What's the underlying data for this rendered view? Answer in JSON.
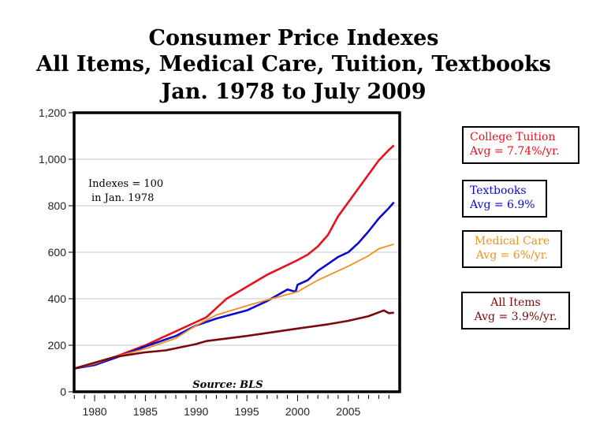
{
  "chart_data": {
    "type": "line",
    "title": [
      "Consumer Price Indexes",
      "All Items, Medical Care, Tuition, Textbooks",
      "Jan. 1978 to July 2009"
    ],
    "xlim": [
      1978,
      2010
    ],
    "ylim": [
      0,
      1200
    ],
    "x_ticks": [
      1980,
      1985,
      1990,
      1995,
      2000,
      2005
    ],
    "y_ticks": [
      0,
      200,
      400,
      600,
      800,
      1000,
      1200
    ],
    "y_tick_labels": [
      "0",
      "200",
      "400",
      "600",
      "800",
      "1,000",
      "1,200"
    ],
    "grid": "horizontal",
    "annotations": {
      "index_note_1": "Indexes = 100",
      "index_note_2": "in Jan. 1978",
      "source": "Source: BLS"
    },
    "series": [
      {
        "name": "College Tuition",
        "avg": "Avg = 7.74%/yr.",
        "color": "#e8101a",
        "x": [
          1978,
          1980,
          1982,
          1985,
          1988,
          1990,
          1991,
          1992,
          1993,
          1995,
          1997,
          1999,
          2000,
          2001,
          2002,
          2003,
          2004,
          2005,
          2006,
          2007,
          2008,
          2009,
          2009.5
        ],
        "y": [
          100,
          118,
          150,
          200,
          260,
          300,
          320,
          360,
          400,
          452,
          503,
          545,
          566,
          590,
          625,
          675,
          755,
          815,
          875,
          935,
          995,
          1040,
          1060
        ]
      },
      {
        "name": "Textbooks",
        "avg": "Avg = 6.9%",
        "color": "#0a0ad2",
        "x": [
          1978,
          1980,
          1982,
          1985,
          1988,
          1990,
          1992,
          1995,
          1997,
          1999,
          1999.8,
          2000,
          2001,
          2002,
          2003,
          2004,
          2005,
          2006,
          2007,
          2008,
          2009,
          2009.5
        ],
        "y": [
          100,
          115,
          145,
          195,
          240,
          285,
          315,
          350,
          390,
          440,
          430,
          460,
          480,
          520,
          550,
          580,
          600,
          640,
          690,
          745,
          790,
          815
        ]
      },
      {
        "name": "Medical Care",
        "avg": "Avg = 6%/yr.",
        "color": "#f0901e",
        "x": [
          1978,
          1980,
          1982,
          1985,
          1988,
          1990,
          1992,
          1995,
          1997,
          2000,
          2002,
          2005,
          2007,
          2008,
          2009.5
        ],
        "y": [
          100,
          120,
          150,
          185,
          230,
          285,
          330,
          370,
          395,
          430,
          480,
          540,
          585,
          615,
          635
        ]
      },
      {
        "name": "All Items",
        "avg": "Avg = 3.9%/yr.",
        "color": "#7a0a0a",
        "x": [
          1978,
          1980,
          1982,
          1985,
          1987,
          1990,
          1991,
          1995,
          2000,
          2003,
          2005,
          2007,
          2008.5,
          2009,
          2009.5
        ],
        "y": [
          100,
          125,
          150,
          170,
          178,
          205,
          218,
          240,
          272,
          290,
          305,
          325,
          350,
          338,
          340
        ]
      }
    ]
  }
}
